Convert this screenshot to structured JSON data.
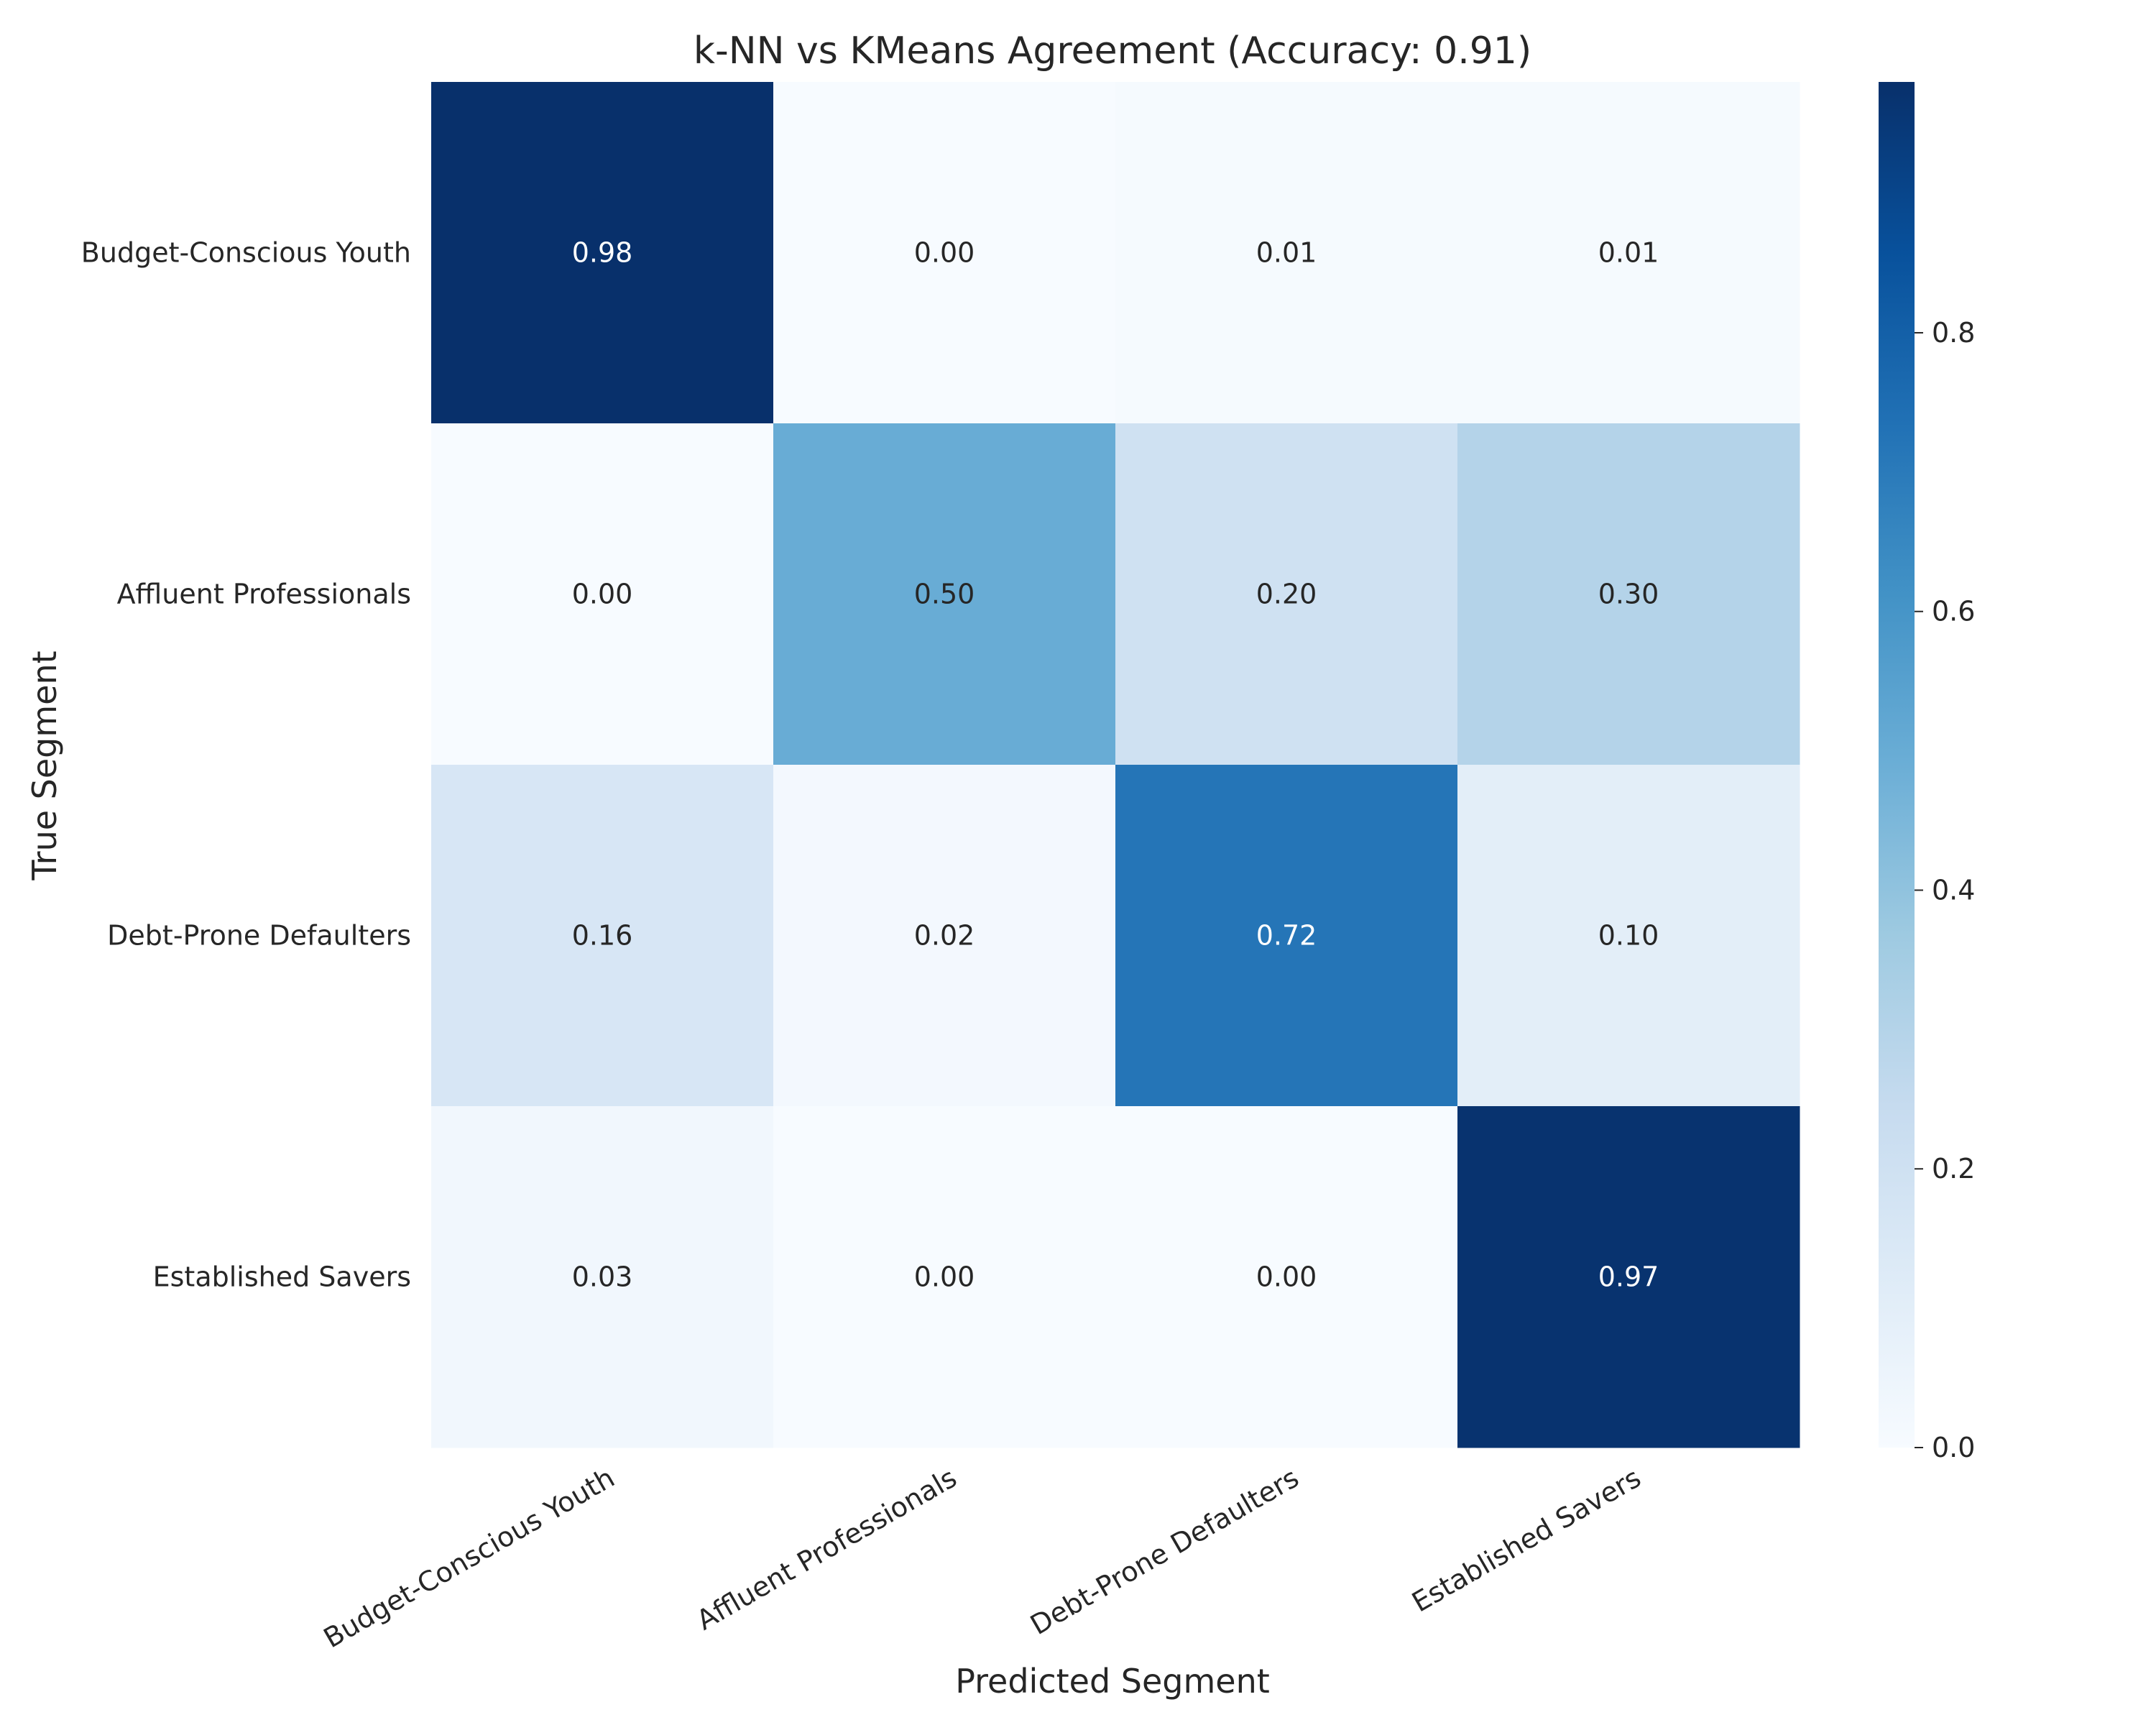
{
  "chart_data": {
    "type": "heatmap",
    "title": "k-NN vs KMeans Agreement (Accuracy: 0.91)",
    "xlabel": "Predicted Segment",
    "ylabel": "True Segment",
    "x_categories": [
      "Budget-Conscious Youth",
      "Affluent Professionals",
      "Debt-Prone Defaulters",
      "Established Savers"
    ],
    "y_categories": [
      "Budget-Conscious Youth",
      "Affluent Professionals",
      "Debt-Prone Defaulters",
      "Established Savers"
    ],
    "values": [
      [
        0.98,
        0.0,
        0.01,
        0.01
      ],
      [
        0.0,
        0.5,
        0.2,
        0.3
      ],
      [
        0.16,
        0.02,
        0.72,
        0.1
      ],
      [
        0.03,
        0.0,
        0.0,
        0.97
      ]
    ],
    "value_labels": [
      [
        "0.98",
        "0.00",
        "0.01",
        "0.01"
      ],
      [
        "0.00",
        "0.50",
        "0.20",
        "0.30"
      ],
      [
        "0.16",
        "0.02",
        "0.72",
        "0.10"
      ],
      [
        "0.03",
        "0.00",
        "0.00",
        "0.97"
      ]
    ],
    "colorscale": "Blues",
    "vmin": 0.0,
    "vmax": 0.98,
    "colorbar_ticks": [
      "0.0",
      "0.2",
      "0.4",
      "0.6",
      "0.8"
    ],
    "colorbar_tick_values": [
      0.0,
      0.2,
      0.4,
      0.6,
      0.8
    ],
    "grid": false,
    "legend": "colorbar-right"
  }
}
